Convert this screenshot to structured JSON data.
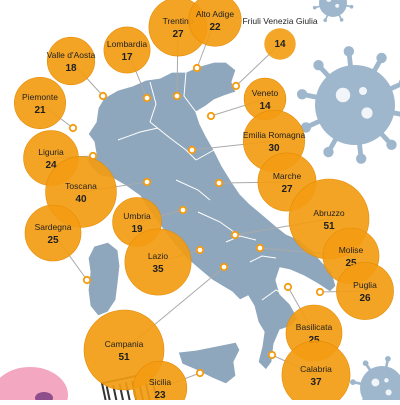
{
  "colors": {
    "bubble": "#F39C12",
    "bubble_stroke": "#E58A00",
    "italy": "#8FA7BC",
    "italy_border": "#FFFFFF",
    "leader": "#A9A9A9",
    "virus": "#9FB7CC",
    "text": "#1F1F1F"
  },
  "chart_data": {
    "type": "bubble-map",
    "regions": [
      {
        "name": "Trentino",
        "value": 27
      },
      {
        "name": "Alto Adige",
        "value": 22
      },
      {
        "name": "Friuli Venezia Giulia",
        "value": 14
      },
      {
        "name": "Valle d'Aosta",
        "value": 18
      },
      {
        "name": "Lombardia",
        "value": 17
      },
      {
        "name": "Piemonte",
        "value": 21
      },
      {
        "name": "Veneto",
        "value": 14
      },
      {
        "name": "Emilia Romagna",
        "value": 30
      },
      {
        "name": "Liguria",
        "value": 24
      },
      {
        "name": "Toscana",
        "value": 40
      },
      {
        "name": "Marche",
        "value": 27
      },
      {
        "name": "Abruzzo",
        "value": 51
      },
      {
        "name": "Sardegna",
        "value": 25
      },
      {
        "name": "Umbria",
        "value": 19
      },
      {
        "name": "Lazio",
        "value": 35
      },
      {
        "name": "Molise",
        "value": 25
      },
      {
        "name": "Puglia",
        "value": 26
      },
      {
        "name": "Campania",
        "value": 51
      },
      {
        "name": "Basilicata",
        "value": 25
      },
      {
        "name": "Sicilia",
        "value": 23
      },
      {
        "name": "Calabria",
        "value": 37
      }
    ]
  }
}
